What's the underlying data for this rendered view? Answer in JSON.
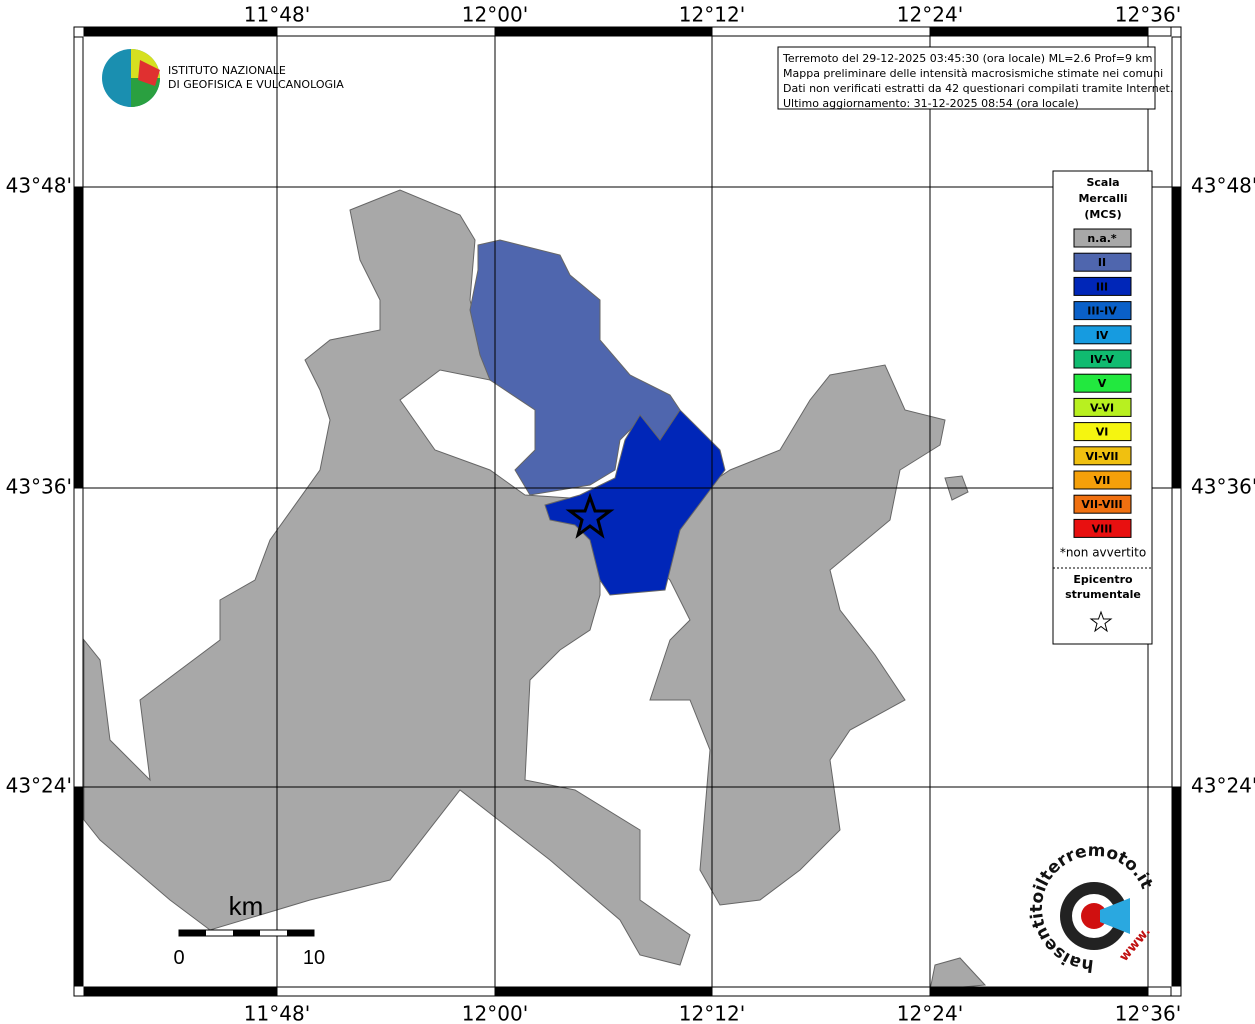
{
  "map": {
    "lon_labels": [
      "11°48'",
      "12°00'",
      "12°12'",
      "12°24'",
      "12°36'"
    ],
    "lat_labels": [
      "43°48'",
      "43°36'",
      "43°24'"
    ]
  },
  "logo": {
    "lines": [
      "ISTITUTO NAZIONALE",
      "DI GEOFISICA E VULCANOLOGIA"
    ]
  },
  "info_box": {
    "lines": [
      "Terremoto del 29-12-2025 03:45:30 (ora locale) ML=2.6 Prof=9 km",
      "Mappa preliminare delle intensità macrosismiche stimate nei comuni",
      "Dati non verificati estratti da 42 questionari compilati tramite Internet.",
      "Ultimo aggiornamento: 31-12-2025 08:54 (ora locale)"
    ]
  },
  "legend": {
    "title": [
      "Scala",
      "Mercalli",
      "(MCS)"
    ],
    "items": [
      {
        "label": "n.a.*",
        "color": "#a8a8a8"
      },
      {
        "label": "II",
        "color": "#4f66ae"
      },
      {
        "label": "III",
        "color": "#0026b8"
      },
      {
        "label": "III-IV",
        "color": "#0a60c8"
      },
      {
        "label": "IV",
        "color": "#169be0"
      },
      {
        "label": "IV-V",
        "color": "#10bb70"
      },
      {
        "label": "V",
        "color": "#22e83f"
      },
      {
        "label": "V-VI",
        "color": "#b8f020"
      },
      {
        "label": "VI",
        "color": "#f5f510"
      },
      {
        "label": "VI-VII",
        "color": "#f0c010"
      },
      {
        "label": "VII",
        "color": "#f5a00a"
      },
      {
        "label": "VII-VIII",
        "color": "#f07010"
      },
      {
        "label": "VIII",
        "color": "#e81010"
      }
    ],
    "note": "*non avvertito",
    "epicenter": [
      "Epicentro",
      "strumentale"
    ]
  },
  "scale_bar": {
    "unit": "km",
    "labels": [
      "0",
      "10"
    ]
  },
  "badge": {
    "text": "haisentitoilterremoto.it",
    "prefix": "www."
  }
}
